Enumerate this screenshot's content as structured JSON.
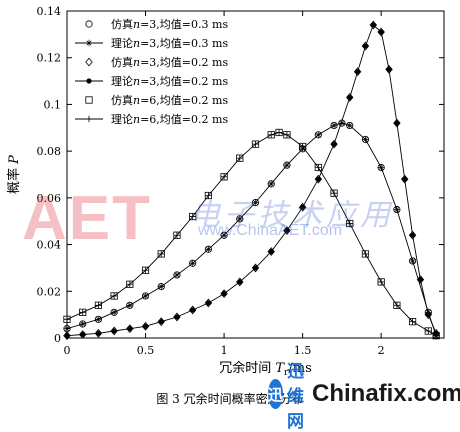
{
  "chart_data": {
    "type": "line",
    "xlabel": "冗余时间 T/ms",
    "xlabel_parts": {
      "prefix": "冗余时间 ",
      "var": "T",
      "sub": "r",
      "suffix": "/ms"
    },
    "ylabel": "概率 P",
    "ylabel_parts": {
      "prefix": "概率 ",
      "var": "P"
    },
    "xlim": [
      0,
      2.4
    ],
    "ylim": [
      0,
      0.14
    ],
    "x_ticks": [
      "0",
      "0.5",
      "1",
      "1.5",
      "2"
    ],
    "y_ticks": [
      "0",
      "0.02",
      "0.04",
      "0.06",
      "0.08",
      "0.1",
      "0.12",
      "0.14"
    ],
    "grid": false,
    "legend_position": "top-left",
    "legend_entries": [
      {
        "label": "仿真n=3,均值=0.3 ms",
        "parts": [
          "仿真",
          "n",
          "=3,均值=0.3 ms"
        ],
        "marker": "circle",
        "line": false
      },
      {
        "label": "理论n=3,均值=0.3 ms",
        "parts": [
          "理论",
          "n",
          "=3,均值=0.3 ms"
        ],
        "marker": "star",
        "line": true
      },
      {
        "label": "仿真n=3,均值=0.2 ms",
        "parts": [
          "仿真",
          "n",
          "=3,均值=0.2 ms"
        ],
        "marker": "diamond",
        "line": false
      },
      {
        "label": "理论n=3,均值=0.2 ms",
        "parts": [
          "理论",
          "n",
          "=3,均值=0.2 ms"
        ],
        "marker": "dot",
        "line": true
      },
      {
        "label": "仿真n=6,均值=0.2 ms",
        "parts": [
          "仿真",
          "n",
          "=6,均值=0.2 ms"
        ],
        "marker": "square",
        "line": false
      },
      {
        "label": "理论n=6,均值=0.2 ms",
        "parts": [
          "理论",
          "n",
          "=6,均值=0.2 ms"
        ],
        "marker": "plus",
        "line": true
      }
    ],
    "series": [
      {
        "name": "理论n=3,均值=0.3 ms",
        "marker": "star",
        "line": true,
        "x": [
          0,
          0.1,
          0.2,
          0.3,
          0.4,
          0.5,
          0.6,
          0.7,
          0.8,
          0.9,
          1.0,
          1.1,
          1.2,
          1.3,
          1.4,
          1.5,
          1.6,
          1.7,
          1.75,
          1.8,
          1.9,
          2.0,
          2.1,
          2.2,
          2.3,
          2.35
        ],
        "y": [
          0.004,
          0.006,
          0.008,
          0.011,
          0.014,
          0.018,
          0.022,
          0.027,
          0.032,
          0.038,
          0.044,
          0.051,
          0.058,
          0.066,
          0.074,
          0.081,
          0.087,
          0.091,
          0.092,
          0.091,
          0.085,
          0.073,
          0.055,
          0.033,
          0.011,
          0.001
        ]
      },
      {
        "name": "仿真n=3,均值=0.3 ms",
        "marker": "circle",
        "line": false,
        "x": [
          0,
          0.1,
          0.2,
          0.3,
          0.4,
          0.5,
          0.6,
          0.7,
          0.8,
          0.9,
          1.0,
          1.1,
          1.2,
          1.3,
          1.4,
          1.5,
          1.6,
          1.7,
          1.75,
          1.8,
          1.9,
          2.0,
          2.1,
          2.2,
          2.3,
          2.35
        ],
        "y": [
          0.004,
          0.006,
          0.008,
          0.011,
          0.014,
          0.018,
          0.022,
          0.027,
          0.032,
          0.038,
          0.044,
          0.051,
          0.058,
          0.066,
          0.074,
          0.081,
          0.087,
          0.091,
          0.092,
          0.091,
          0.085,
          0.073,
          0.055,
          0.033,
          0.011,
          0.001
        ]
      },
      {
        "name": "理论n=3,均值=0.2 ms",
        "marker": "dot",
        "line": true,
        "x": [
          0,
          0.1,
          0.2,
          0.3,
          0.4,
          0.5,
          0.6,
          0.7,
          0.8,
          0.9,
          1.0,
          1.1,
          1.2,
          1.3,
          1.4,
          1.5,
          1.6,
          1.7,
          1.8,
          1.85,
          1.9,
          1.95,
          2.0,
          2.05,
          2.1,
          2.15,
          2.2,
          2.25,
          2.3,
          2.35
        ],
        "y": [
          0.001,
          0.0015,
          0.002,
          0.003,
          0.004,
          0.005,
          0.007,
          0.009,
          0.012,
          0.015,
          0.019,
          0.024,
          0.03,
          0.037,
          0.046,
          0.056,
          0.068,
          0.083,
          0.103,
          0.114,
          0.125,
          0.134,
          0.131,
          0.115,
          0.092,
          0.068,
          0.044,
          0.025,
          0.01,
          0.002
        ]
      },
      {
        "name": "仿真n=3,均值=0.2 ms",
        "marker": "diamond",
        "line": false,
        "x": [
          0,
          0.1,
          0.2,
          0.3,
          0.4,
          0.5,
          0.6,
          0.7,
          0.8,
          0.9,
          1.0,
          1.1,
          1.2,
          1.3,
          1.4,
          1.5,
          1.6,
          1.7,
          1.8,
          1.85,
          1.9,
          1.95,
          2.0,
          2.05,
          2.1,
          2.15,
          2.2,
          2.25,
          2.3,
          2.35
        ],
        "y": [
          0.001,
          0.0015,
          0.002,
          0.003,
          0.004,
          0.005,
          0.007,
          0.009,
          0.012,
          0.015,
          0.019,
          0.024,
          0.03,
          0.037,
          0.046,
          0.056,
          0.068,
          0.083,
          0.103,
          0.114,
          0.125,
          0.134,
          0.131,
          0.115,
          0.092,
          0.068,
          0.044,
          0.025,
          0.01,
          0.002
        ]
      },
      {
        "name": "理论n=6,均值=0.2 ms",
        "marker": "plus",
        "line": true,
        "x": [
          0,
          0.1,
          0.2,
          0.3,
          0.4,
          0.5,
          0.6,
          0.7,
          0.8,
          0.9,
          1.0,
          1.1,
          1.2,
          1.3,
          1.35,
          1.4,
          1.5,
          1.6,
          1.7,
          1.8,
          1.9,
          2.0,
          2.1,
          2.2,
          2.3,
          2.35
        ],
        "y": [
          0.008,
          0.011,
          0.014,
          0.018,
          0.023,
          0.029,
          0.036,
          0.044,
          0.052,
          0.061,
          0.069,
          0.077,
          0.083,
          0.087,
          0.088,
          0.087,
          0.082,
          0.073,
          0.062,
          0.049,
          0.036,
          0.024,
          0.014,
          0.007,
          0.003,
          0.001
        ]
      },
      {
        "name": "仿真n=6,均值=0.2 ms",
        "marker": "square",
        "line": false,
        "x": [
          0,
          0.1,
          0.2,
          0.3,
          0.4,
          0.5,
          0.6,
          0.7,
          0.8,
          0.9,
          1.0,
          1.1,
          1.2,
          1.3,
          1.35,
          1.4,
          1.5,
          1.6,
          1.7,
          1.8,
          1.9,
          2.0,
          2.1,
          2.2,
          2.3,
          2.35
        ],
        "y": [
          0.008,
          0.011,
          0.014,
          0.018,
          0.023,
          0.029,
          0.036,
          0.044,
          0.052,
          0.061,
          0.069,
          0.077,
          0.083,
          0.087,
          0.088,
          0.087,
          0.082,
          0.073,
          0.062,
          0.049,
          0.036,
          0.024,
          0.014,
          0.007,
          0.003,
          0.001
        ]
      }
    ]
  },
  "caption": "图 3  冗余时间概率密度分布",
  "watermark": {
    "aet_text": "AET",
    "cn_text": "电子技术应用",
    "url_text": "www.ChinaAET.com"
  },
  "brand": {
    "logo_icon": "xunwei-logo-icon",
    "name_cn": "迅维网",
    "name_en": "Chinafix.com"
  },
  "colors": {
    "axis": "#000000",
    "brand_blue": "#1e74d6",
    "watermark_red": "#dc1e28"
  }
}
